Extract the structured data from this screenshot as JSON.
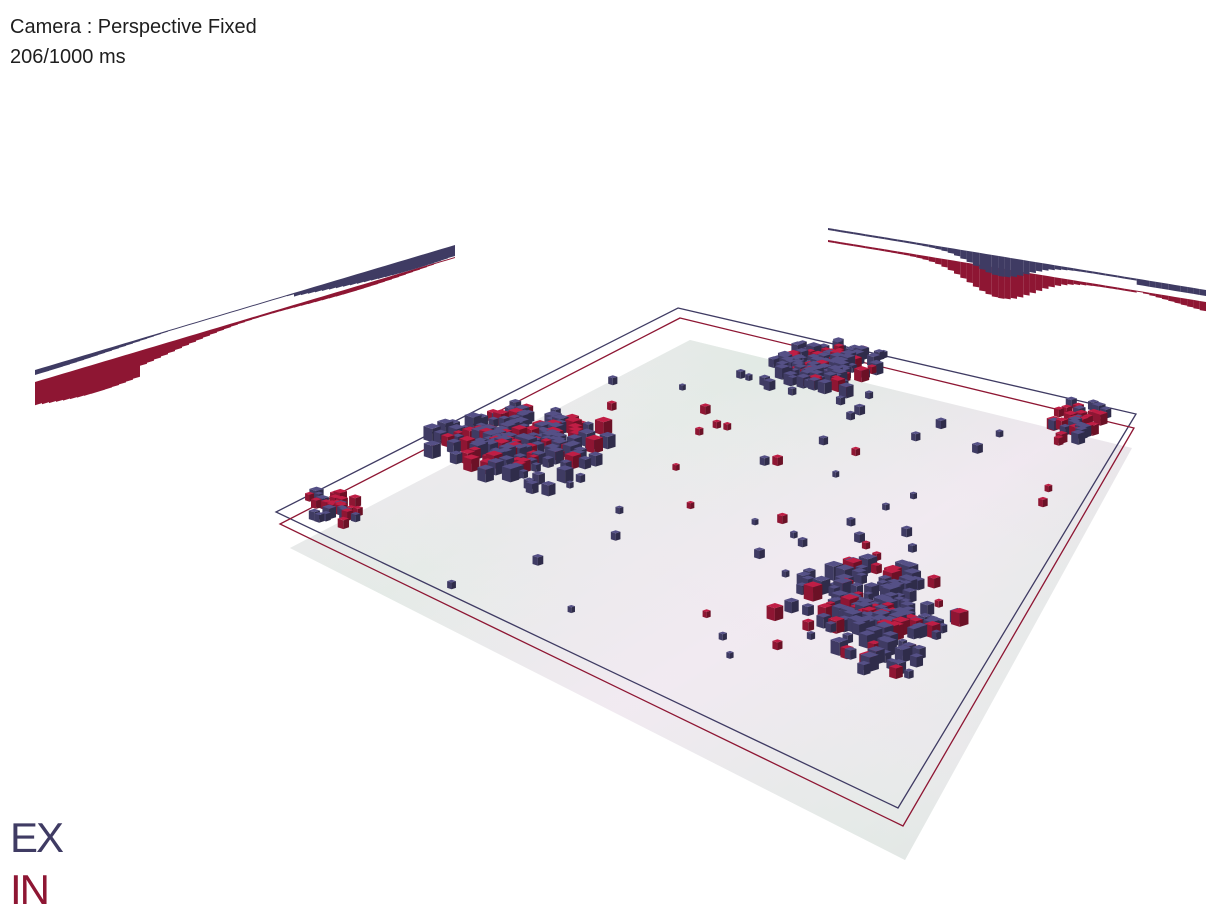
{
  "hud": {
    "camera_label": "Camera : Perspective Fixed",
    "timing_label": "206/1000 ms"
  },
  "legend": {
    "ex_label": "EX",
    "in_label": "IN"
  },
  "colors": {
    "ex": "#3f3b63",
    "in": "#8e1633",
    "background": "#ffffff",
    "plane_green": "#cfe0d6",
    "plane_violet": "#e7dbe6"
  }
}
